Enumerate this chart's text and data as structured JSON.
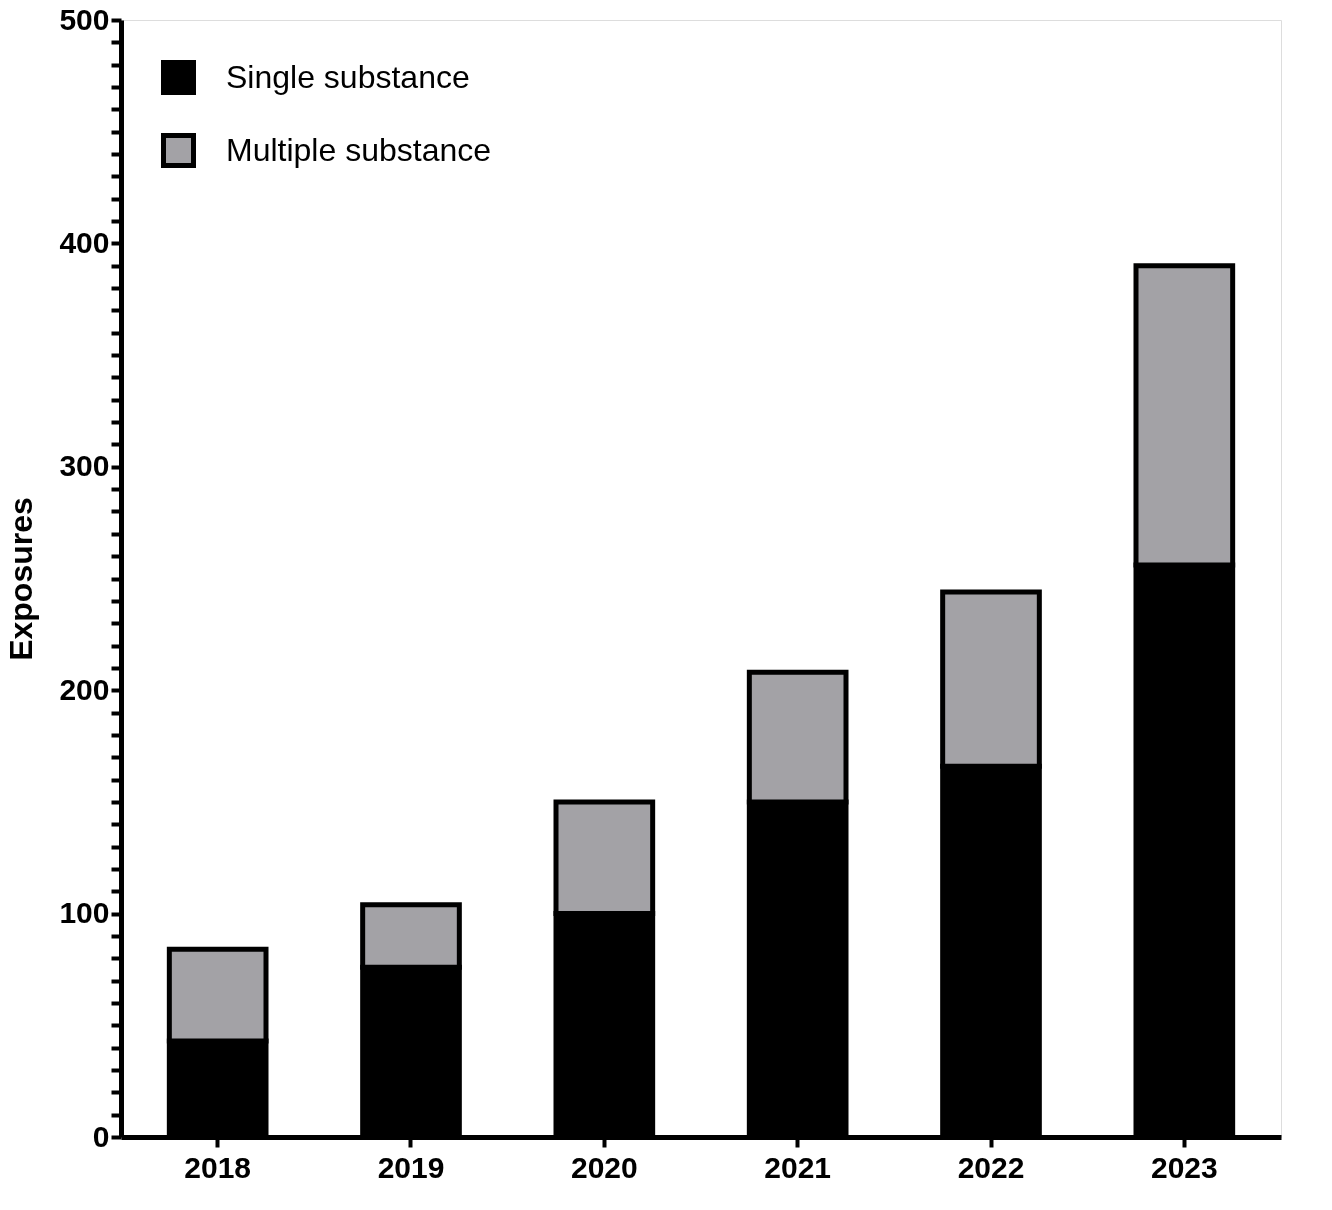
{
  "chart_data": {
    "type": "bar",
    "stacked": true,
    "ylabel": "Exposures",
    "categories": [
      "2018",
      "2019",
      "2020",
      "2021",
      "2022",
      "2023"
    ],
    "series": [
      {
        "name": "Single substance",
        "color": "#000000",
        "values": [
          43,
          76,
          100,
          150,
          166,
          256
        ]
      },
      {
        "name": "Multiple substance",
        "color": "#a3a2a6",
        "values": [
          41,
          28,
          50,
          58,
          78,
          134
        ]
      }
    ],
    "ylim": [
      0,
      500
    ],
    "yticks": [
      0,
      {
        "value": 10,
        "label": null
      },
      {
        "value": 20,
        "label": null
      },
      {
        "value": 30,
        "label": null
      },
      {
        "value": 40,
        "label": null
      },
      {
        "value": 50,
        "label": null
      },
      {
        "value": 60,
        "label": null
      },
      {
        "value": 70,
        "label": null
      },
      {
        "value": 80,
        "label": null
      },
      {
        "value": 90,
        "label": null
      },
      100,
      {
        "value": 110,
        "label": null
      },
      {
        "value": 120,
        "label": null
      },
      {
        "value": 130,
        "label": null
      },
      {
        "value": 140,
        "label": null
      },
      {
        "value": 150,
        "label": null
      },
      {
        "value": 160,
        "label": null
      },
      {
        "value": 170,
        "label": null
      },
      {
        "value": 180,
        "label": null
      },
      {
        "value": 190,
        "label": null
      },
      200,
      {
        "value": 210,
        "label": null
      },
      {
        "value": 220,
        "label": null
      },
      {
        "value": 230,
        "label": null
      },
      {
        "value": 240,
        "label": null
      },
      {
        "value": 250,
        "label": null
      },
      {
        "value": 260,
        "label": null
      },
      {
        "value": 270,
        "label": null
      },
      {
        "value": 280,
        "label": null
      },
      {
        "value": 290,
        "label": null
      },
      300,
      {
        "value": 310,
        "label": null
      },
      {
        "value": 320,
        "label": null
      },
      {
        "value": 330,
        "label": null
      },
      {
        "value": 340,
        "label": null
      },
      {
        "value": 350,
        "label": null
      },
      {
        "value": 360,
        "label": null
      },
      {
        "value": 370,
        "label": null
      },
      {
        "value": 380,
        "label": null
      },
      {
        "value": 390,
        "label": null
      },
      400,
      {
        "value": 410,
        "label": null
      },
      {
        "value": 420,
        "label": null
      },
      {
        "value": 430,
        "label": null
      },
      {
        "value": 440,
        "label": null
      },
      {
        "value": 450,
        "label": null
      },
      {
        "value": 460,
        "label": null
      },
      {
        "value": 470,
        "label": null
      },
      {
        "value": 480,
        "label": null
      },
      {
        "value": 490,
        "label": null
      },
      500
    ],
    "grid": false,
    "legend": "top left"
  }
}
